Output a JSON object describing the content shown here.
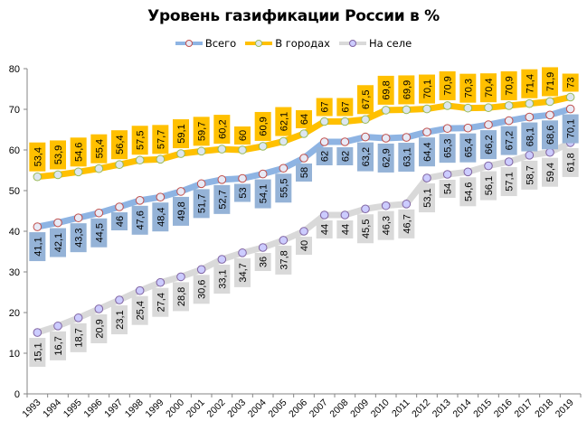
{
  "chart_data": {
    "type": "line",
    "title": "Уровень газификации России в %",
    "xlabel": "",
    "ylabel": "",
    "ylim": [
      0,
      80
    ],
    "yticks": [
      0,
      10,
      20,
      30,
      40,
      50,
      60,
      70,
      80
    ],
    "grid": false,
    "legend_position": "top",
    "categories": [
      "1993",
      "1994",
      "1995",
      "1996",
      "1997",
      "1998",
      "1999",
      "2000",
      "2001",
      "2002",
      "2003",
      "2004",
      "2005",
      "2006",
      "2007",
      "2008",
      "2009",
      "2010",
      "2011",
      "2012",
      "2013",
      "2014",
      "2015",
      "2016",
      "2017",
      "2018",
      "2019"
    ],
    "series": [
      {
        "name": "Всего",
        "line_color": "#8EB4E3",
        "marker_edge": "#C0504D",
        "label_bg": "#95B3D7",
        "label_position": "below",
        "values": [
          41.1,
          42.1,
          43.3,
          44.5,
          46,
          47.6,
          48.4,
          49.8,
          51.7,
          52.7,
          53,
          54.1,
          55.5,
          58,
          62,
          62,
          63.2,
          62.9,
          63.1,
          64.4,
          65.3,
          65.4,
          66.2,
          67.2,
          68.1,
          68.6,
          70.1
        ],
        "labels": [
          "41,1",
          "42,1",
          "43,3",
          "44,5",
          "46",
          "47,6",
          "48,4",
          "49,8",
          "51,7",
          "52,7",
          "53",
          "54,1",
          "55,5",
          "58",
          "62",
          "62",
          "63,2",
          "62,9",
          "63,1",
          "64,4",
          "65,3",
          "65,4",
          "66,2",
          "67,2",
          "68,1",
          "68,6",
          "70,1"
        ]
      },
      {
        "name": "В городах",
        "line_color": "#FFC000",
        "marker_edge": "#9BBB59",
        "label_bg": "#FFC000",
        "label_position": "above",
        "values": [
          53.4,
          53.9,
          54.6,
          55.4,
          56.4,
          57.5,
          57.7,
          59.1,
          59.7,
          60.2,
          60,
          60.9,
          62.1,
          64,
          67,
          67,
          67.5,
          69.8,
          69.9,
          70.1,
          70.9,
          70.3,
          70.4,
          70.9,
          71.4,
          71.9,
          73
        ],
        "labels": [
          "53,4",
          "53,9",
          "54,6",
          "55,4",
          "56,4",
          "57,5",
          "57,7",
          "59,1",
          "59,7",
          "60,2",
          "60",
          "60,9",
          "62,1",
          "64",
          "67",
          "67",
          "67,5",
          "69,8",
          "69,9",
          "70,1",
          "70,9",
          "70,3",
          "70,4",
          "70,9",
          "71,4",
          "71,9",
          "73"
        ]
      },
      {
        "name": "На селе",
        "line_color": "#D9D9D9",
        "marker_edge": "#8064A2",
        "label_bg": "#D9D9D9",
        "label_position": "below",
        "values": [
          15.1,
          16.7,
          18.7,
          20.9,
          23.1,
          25.4,
          27.4,
          28.8,
          30.6,
          33.1,
          34.7,
          36,
          37.8,
          40,
          44,
          44,
          45.5,
          46.3,
          46.7,
          53.1,
          54,
          54.6,
          56.1,
          57.1,
          58.7,
          59.4,
          61.8
        ],
        "labels": [
          "15,1",
          "16,7",
          "18,7",
          "20,9",
          "23,1",
          "25,4",
          "27,4",
          "28,8",
          "30,6",
          "33,1",
          "34,7",
          "36",
          "37,8",
          "40",
          "44",
          "44",
          "45,5",
          "46,3",
          "46,7",
          "53,1",
          "54",
          "54,6",
          "56,1",
          "57,1",
          "58,7",
          "59,4",
          "61,8"
        ]
      }
    ]
  },
  "legend": {
    "items": [
      {
        "label": "Всего"
      },
      {
        "label": "В городах"
      },
      {
        "label": "На селе"
      }
    ]
  }
}
